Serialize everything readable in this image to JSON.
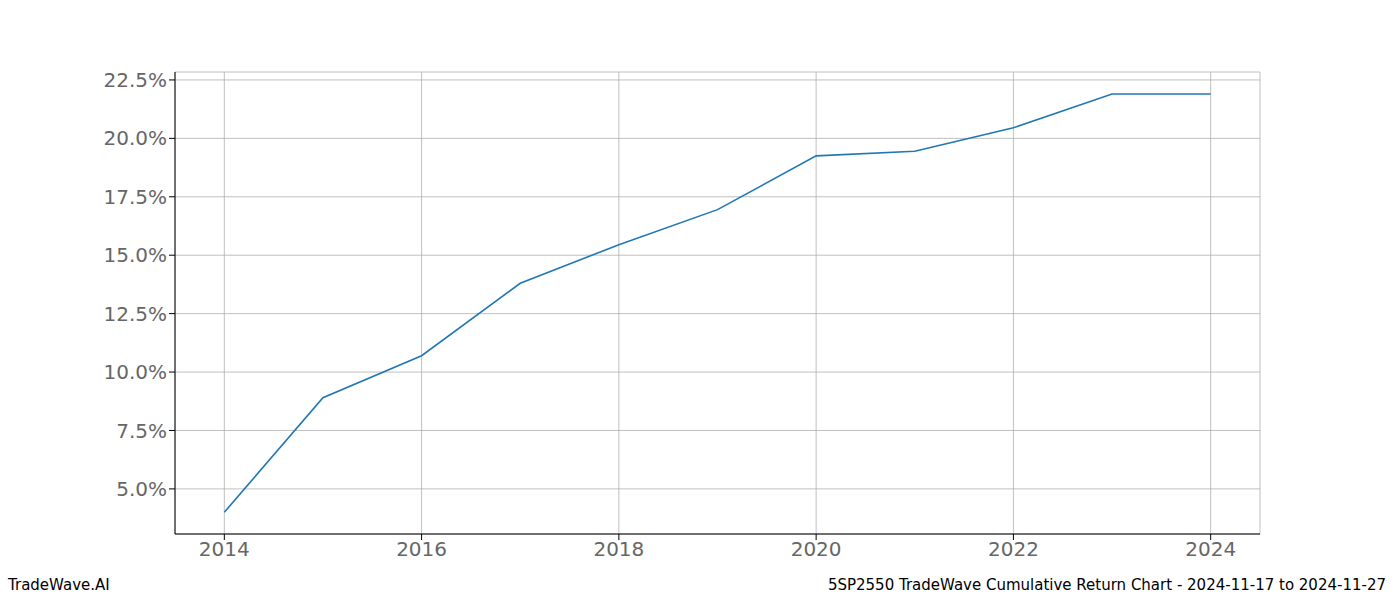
{
  "chart_data": {
    "type": "line",
    "title": "5SP2550 TradeWave Cumulative Return Chart - 2024-11-17 to 2024-11-27",
    "source": "TradeWave.AI",
    "x": [
      2014,
      2015,
      2016,
      2017,
      2018,
      2019,
      2020,
      2021,
      2022,
      2023,
      2024
    ],
    "values": [
      4.0,
      8.9,
      10.7,
      13.8,
      15.45,
      16.95,
      19.25,
      19.45,
      20.45,
      21.9,
      21.9
    ],
    "color": "#1f77b4",
    "xlim": [
      2013.5,
      2024.5
    ],
    "xticks": [
      2014,
      2016,
      2018,
      2020,
      2022,
      2024
    ],
    "ylim": [
      3.07,
      22.84
    ],
    "yticks": [
      {
        "value": 5.0,
        "label": "5.0%"
      },
      {
        "value": 7.5,
        "label": "7.5%"
      },
      {
        "value": 10.0,
        "label": "10.0%"
      },
      {
        "value": 12.5,
        "label": "12.5%"
      },
      {
        "value": 15.0,
        "label": "15.0%"
      },
      {
        "value": 17.5,
        "label": "17.5%"
      },
      {
        "value": 20.0,
        "label": "20.0%"
      },
      {
        "value": 22.5,
        "label": "22.5%"
      }
    ],
    "grid": true
  }
}
